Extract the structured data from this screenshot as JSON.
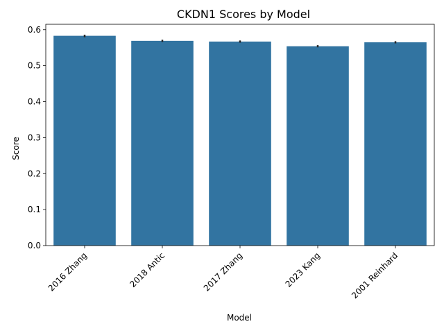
{
  "chart_data": {
    "type": "bar",
    "title": "CKDN1 Scores by Model",
    "xlabel": "Model",
    "ylabel": "Score",
    "categories": [
      "2016 Zhang",
      "2018 Antic",
      "2017 Zhang",
      "2023 Kang",
      "2001 Reinhard"
    ],
    "values": [
      0.583,
      0.569,
      0.567,
      0.554,
      0.565
    ],
    "error_low": [
      0.579,
      0.566,
      0.564,
      0.551,
      0.562
    ],
    "error_high": [
      0.586,
      0.572,
      0.57,
      0.557,
      0.568
    ],
    "ylim": [
      0,
      0.615
    ],
    "yticks": [
      0.0,
      0.1,
      0.2,
      0.3,
      0.4,
      0.5,
      0.6
    ],
    "ytick_labels": [
      "0.0",
      "0.1",
      "0.2",
      "0.3",
      "0.4",
      "0.5",
      "0.6"
    ],
    "grid": false,
    "legend": "none",
    "bar_color": "#3274a1",
    "error_color": "#262626"
  }
}
